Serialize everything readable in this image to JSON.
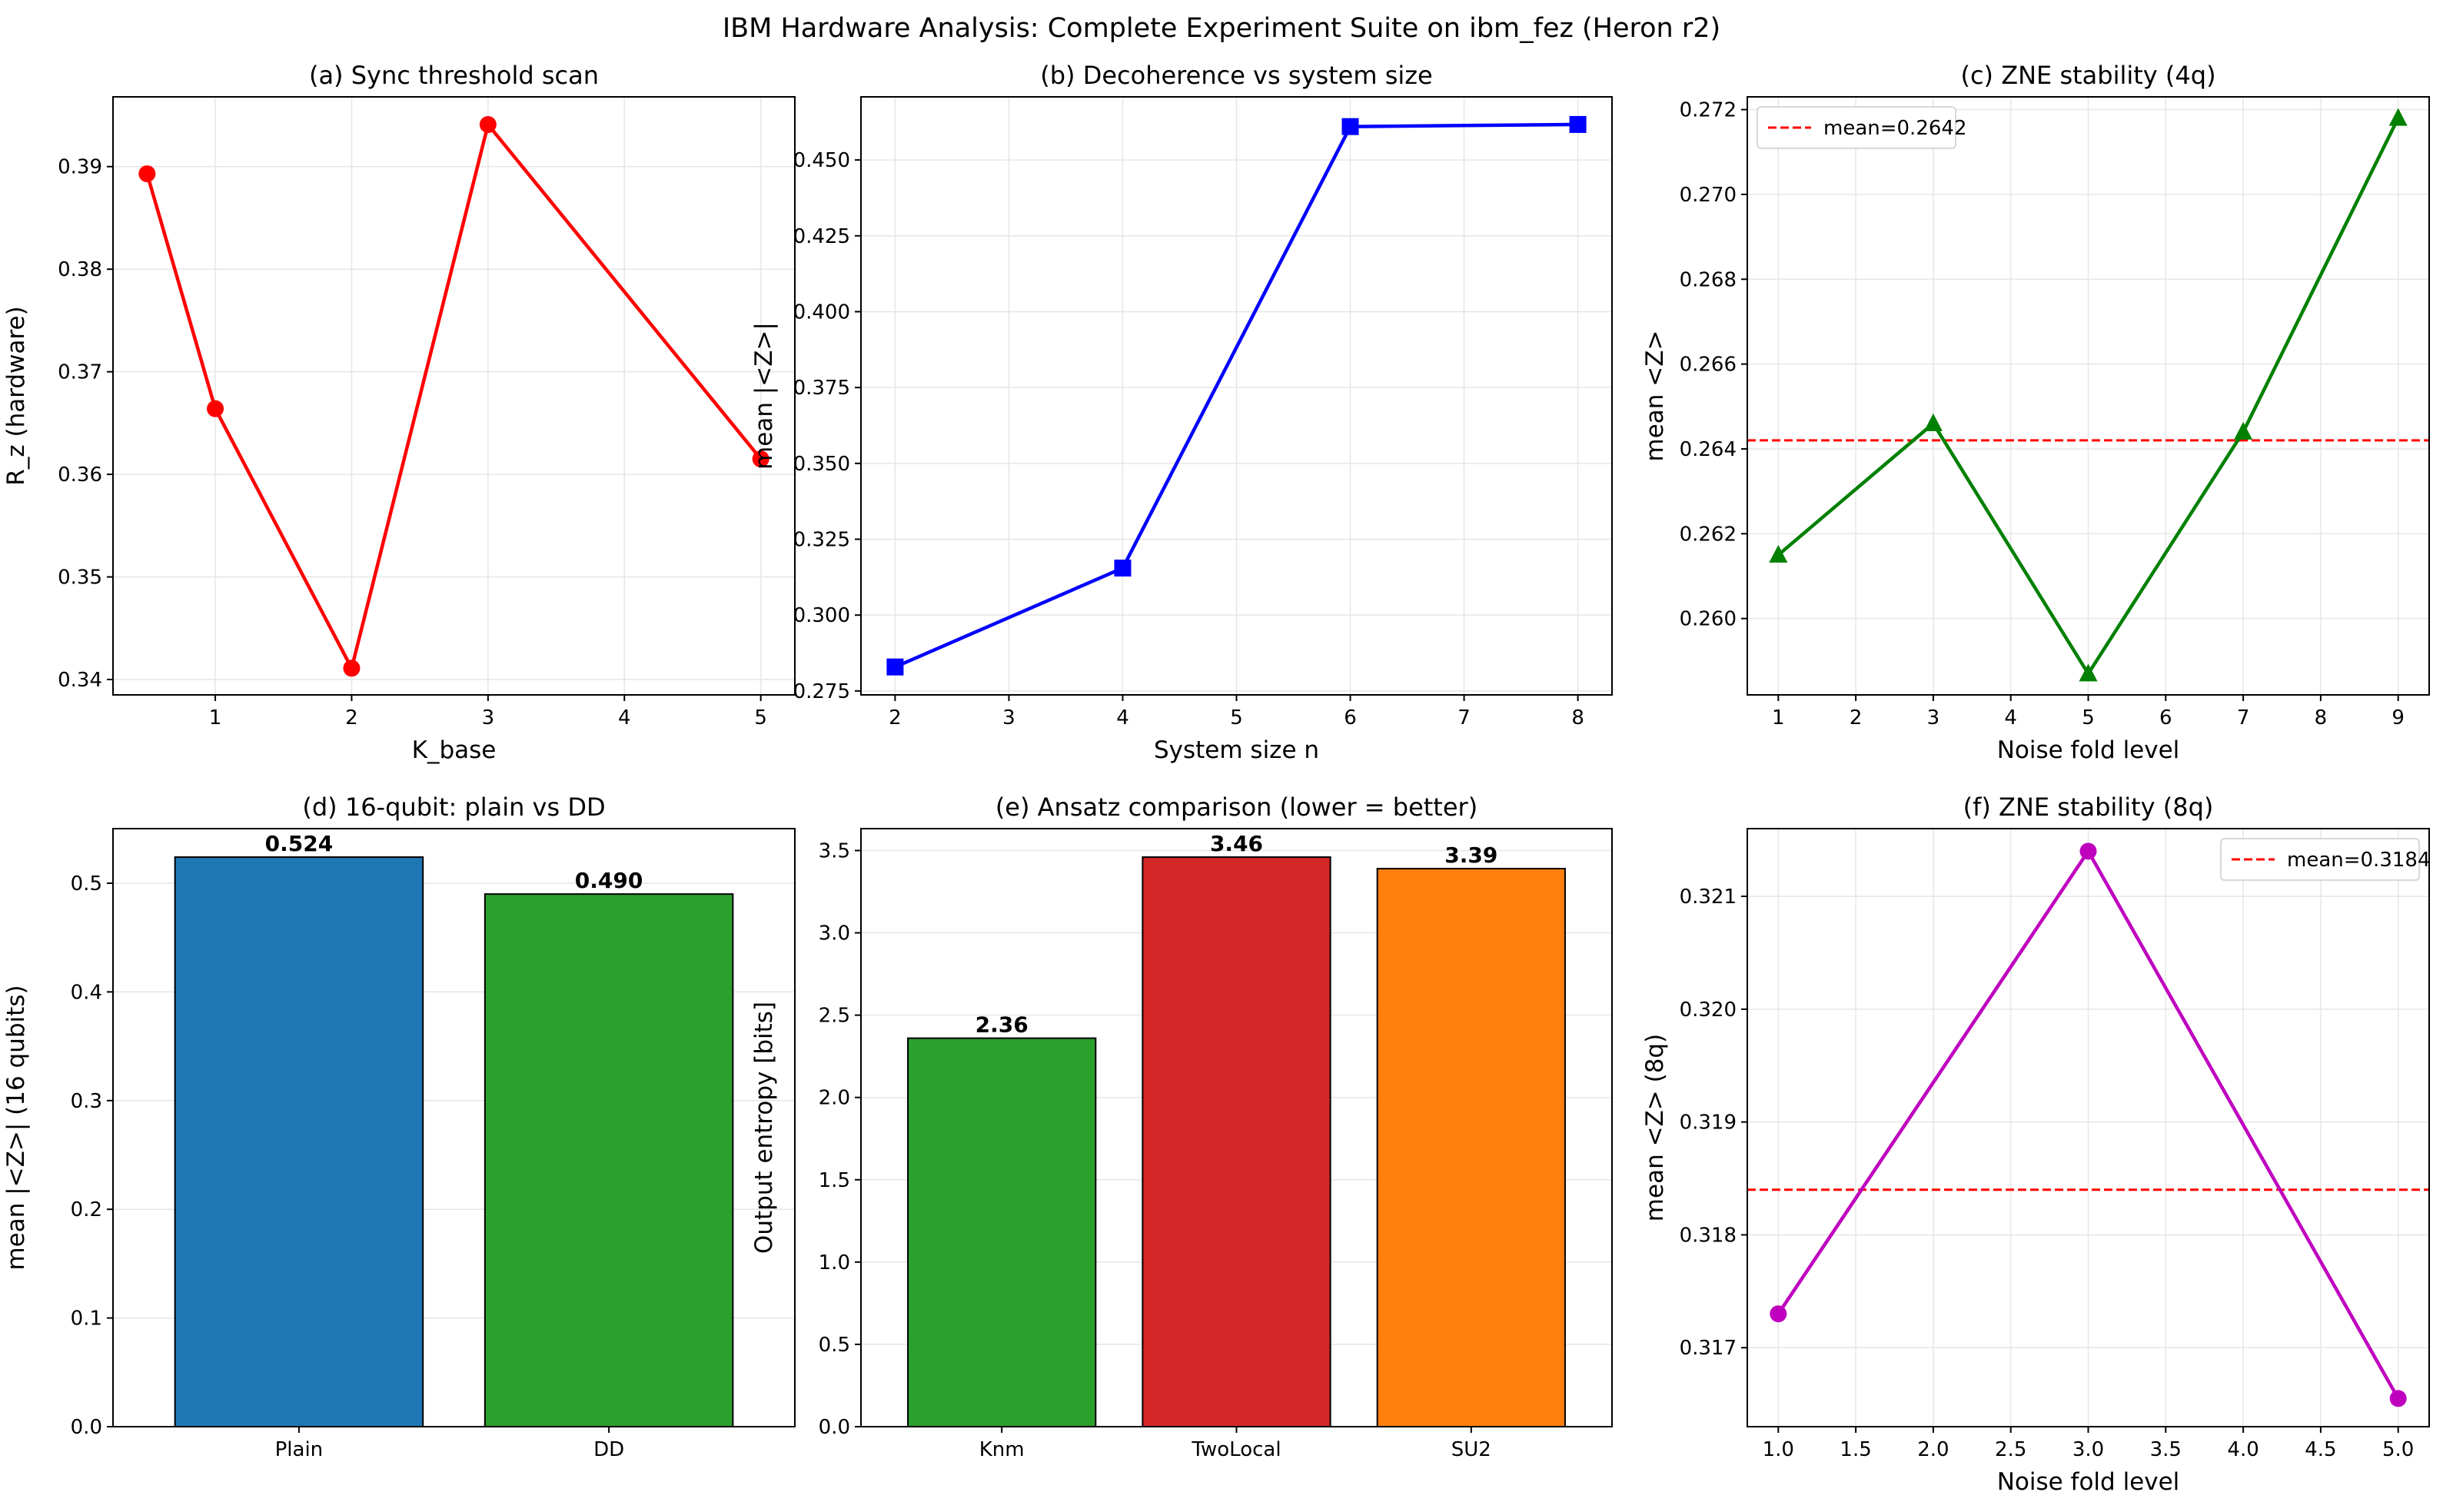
{
  "suptitle": "IBM Hardware Analysis: Complete Experiment Suite on ibm_fez (Heron r2)",
  "colors": {
    "red": "#ff0000",
    "blue": "#0000ff",
    "green": "#008000",
    "magenta": "#bf00bf",
    "mean_line": "#ff0000",
    "bar_blue": "#1f77b4",
    "bar_green": "#2ca02c",
    "bar_red": "#d62728",
    "bar_orange": "#ff7f0e",
    "grid": "#e6e6e6"
  },
  "chart_data": [
    {
      "id": "a",
      "type": "line",
      "marker": "circle",
      "color": "#ff0000",
      "title": "(a) Sync threshold scan",
      "xlabel": "K_base",
      "ylabel": "R_z (hardware)",
      "x": [
        0.5,
        1,
        2,
        3,
        5
      ],
      "y": [
        0.3893,
        0.3664,
        0.3411,
        0.3941,
        0.3615
      ],
      "xlim": [
        0.25,
        5.25
      ],
      "ylim": [
        0.3385,
        0.3968
      ],
      "xticks": [
        1,
        2,
        3,
        4,
        5
      ],
      "yticks": [
        0.34,
        0.35,
        0.36,
        0.37,
        0.38,
        0.39
      ],
      "ydec": 2
    },
    {
      "id": "b",
      "type": "line",
      "marker": "square",
      "color": "#0000ff",
      "title": "(b) Decoherence vs system size",
      "xlabel": "System size n",
      "ylabel": "mean |<Z>|",
      "x": [
        2,
        4,
        6,
        8
      ],
      "y": [
        0.2829,
        0.3155,
        0.461,
        0.4617
      ],
      "xlim": [
        1.7,
        8.3
      ],
      "ylim": [
        0.2737,
        0.4708
      ],
      "xticks": [
        2,
        3,
        4,
        5,
        6,
        7,
        8
      ],
      "yticks": [
        0.275,
        0.3,
        0.325,
        0.35,
        0.375,
        0.4,
        0.425,
        0.45
      ],
      "ydec": 3
    },
    {
      "id": "c",
      "type": "line",
      "marker": "triangle",
      "color": "#008000",
      "title": "(c) ZNE stability (4q)",
      "xlabel": "Noise fold level",
      "ylabel": "mean <Z>",
      "x": [
        1,
        3,
        5,
        7,
        9
      ],
      "y": [
        0.2615,
        0.2646,
        0.2587,
        0.2644,
        0.2718
      ],
      "mean": 0.2642,
      "legend": "mean=0.2642",
      "legend_loc": "upper left",
      "xlim": [
        0.6,
        9.4
      ],
      "ylim": [
        0.2582,
        0.2723
      ],
      "xticks": [
        1,
        2,
        3,
        4,
        5,
        6,
        7,
        8,
        9
      ],
      "yticks": [
        0.26,
        0.262,
        0.264,
        0.266,
        0.268,
        0.27,
        0.272
      ],
      "ydec": 3
    },
    {
      "id": "d",
      "type": "bar",
      "title": "(d) 16-qubit: plain vs DD",
      "xlabel": "",
      "ylabel": "mean |<Z>| (16 qubits)",
      "categories": [
        "Plain",
        "DD"
      ],
      "values": [
        0.524,
        0.49
      ],
      "labels": [
        "0.524",
        "0.490"
      ],
      "colors": [
        "#1f77b4",
        "#2ca02c"
      ],
      "ylim": [
        0,
        0.5502
      ],
      "yticks": [
        0,
        0.1,
        0.2,
        0.3,
        0.4,
        0.5
      ],
      "ydec": 1
    },
    {
      "id": "e",
      "type": "bar",
      "title": "(e) Ansatz comparison (lower = better)",
      "xlabel": "",
      "ylabel": "Output entropy [bits]",
      "categories": [
        "Knm",
        "TwoLocal",
        "SU2"
      ],
      "values": [
        2.36,
        3.46,
        3.39
      ],
      "labels": [
        "2.36",
        "3.46",
        "3.39"
      ],
      "colors": [
        "#2ca02c",
        "#d62728",
        "#ff7f0e"
      ],
      "ylim": [
        0,
        3.633
      ],
      "yticks": [
        0,
        0.5,
        1,
        1.5,
        2,
        2.5,
        3,
        3.5
      ],
      "ydec": 1
    },
    {
      "id": "f",
      "type": "line",
      "marker": "circle",
      "color": "#bf00bf",
      "title": "(f) ZNE stability (8q)",
      "xlabel": "Noise fold level",
      "ylabel": "mean <Z> (8q)",
      "x": [
        1,
        3,
        5
      ],
      "y": [
        0.3173,
        0.3214,
        0.31655
      ],
      "mean": 0.3184,
      "legend": "mean=0.3184",
      "legend_loc": "upper right",
      "xlim": [
        0.8,
        5.2
      ],
      "ylim": [
        0.3163,
        0.3216
      ],
      "xticks": [
        1,
        1.5,
        2,
        2.5,
        3,
        3.5,
        4,
        4.5,
        5
      ],
      "yticks": [
        0.317,
        0.318,
        0.319,
        0.32,
        0.321
      ],
      "ydec": 3,
      "xdec": 1
    }
  ]
}
